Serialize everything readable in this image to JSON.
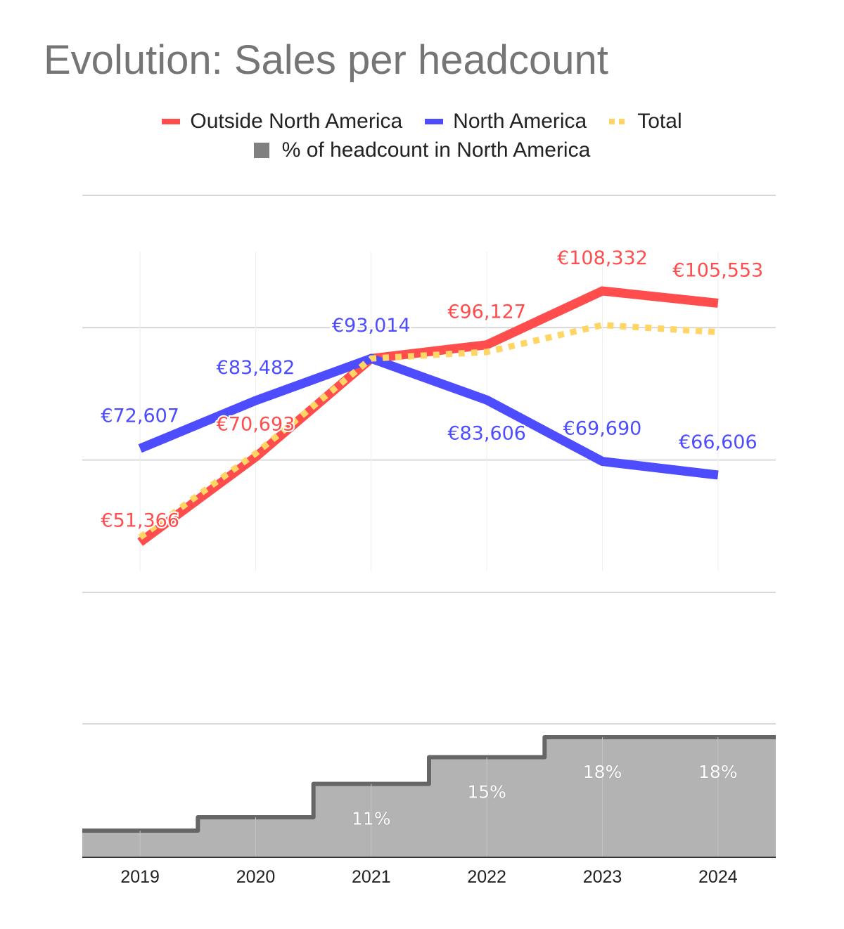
{
  "chart_data": {
    "title": "Evolution: Sales per headcount",
    "categories": [
      "2019",
      "2020",
      "2021",
      "2022",
      "2023",
      "2024"
    ],
    "panels": [
      {
        "type": "line",
        "series": [
          {
            "name": "Outside North America",
            "color": "#FF4D4D",
            "style": "solid",
            "values": [
              51366,
              70693,
              93014,
              96127,
              108332,
              105553
            ],
            "labels": [
              "€51,366",
              "€70,693",
              "€93,014",
              "€96,127",
              "€108,332",
              "€105,553"
            ]
          },
          {
            "name": "North America",
            "color": "#4D4DFF",
            "style": "solid",
            "values": [
              72607,
              83482,
              93014,
              83606,
              69690,
              66606
            ],
            "labels": [
              "€72,607",
              "€83,482",
              "€93,014",
              "€83,606",
              "€69,690",
              "€66,606"
            ]
          },
          {
            "name": "Total",
            "color": "#FFD666",
            "style": "dotted",
            "values": [
              52500,
              71500,
              93014,
              94500,
              100600,
              99000
            ]
          }
        ],
        "ylim": [
          40000,
          130000
        ],
        "grid": true
      },
      {
        "type": "area",
        "shape": "step",
        "series": [
          {
            "name": "% of headcount in North America",
            "color": "#B3B3B3",
            "line_color": "#666666",
            "values": [
              4,
              6,
              11,
              15,
              18,
              18
            ],
            "labels": [
              "",
              "",
              "11%",
              "15%",
              "18%",
              "18%"
            ]
          }
        ],
        "ylim": [
          0,
          20
        ],
        "grid": true
      }
    ],
    "legend_position": "top"
  },
  "legend": [
    {
      "label": "Outside North America",
      "color": "#FF4D4D",
      "kind": "line"
    },
    {
      "label": "North America",
      "color": "#4D4DFF",
      "kind": "line"
    },
    {
      "label": "Total",
      "color": "#FFD666",
      "kind": "dotted"
    },
    {
      "label": "% of headcount in North America",
      "color": "#808080",
      "kind": "box"
    }
  ]
}
